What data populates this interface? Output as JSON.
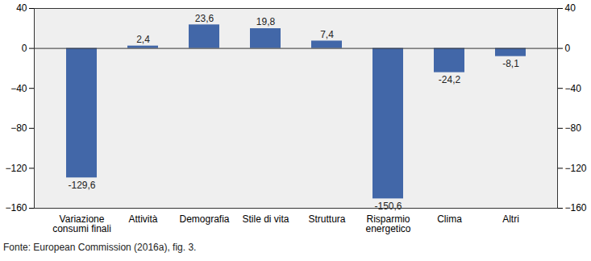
{
  "chart_data": {
    "type": "bar",
    "categories": [
      "Variazione consumi finali",
      "Attività",
      "Demografia",
      "Stile di vita",
      "Struttura",
      "Risparmio energetico",
      "Clima",
      "Altri"
    ],
    "values": [
      -129.6,
      2.4,
      23.6,
      19.8,
      7.4,
      -150.6,
      -24.2,
      -8.1
    ],
    "value_labels": [
      "-129,6",
      "2,4",
      "23,6",
      "19,8",
      "7,4",
      "-150,6",
      "-24,2",
      "-8,1"
    ],
    "color": "#4267a8",
    "ylim": [
      -160,
      40
    ],
    "yticks": [
      -160,
      -120,
      -80,
      -40,
      0,
      40
    ],
    "grid": false,
    "data_labels": true,
    "caption": "Fonte: European Commission (2016a), fig. 3."
  }
}
